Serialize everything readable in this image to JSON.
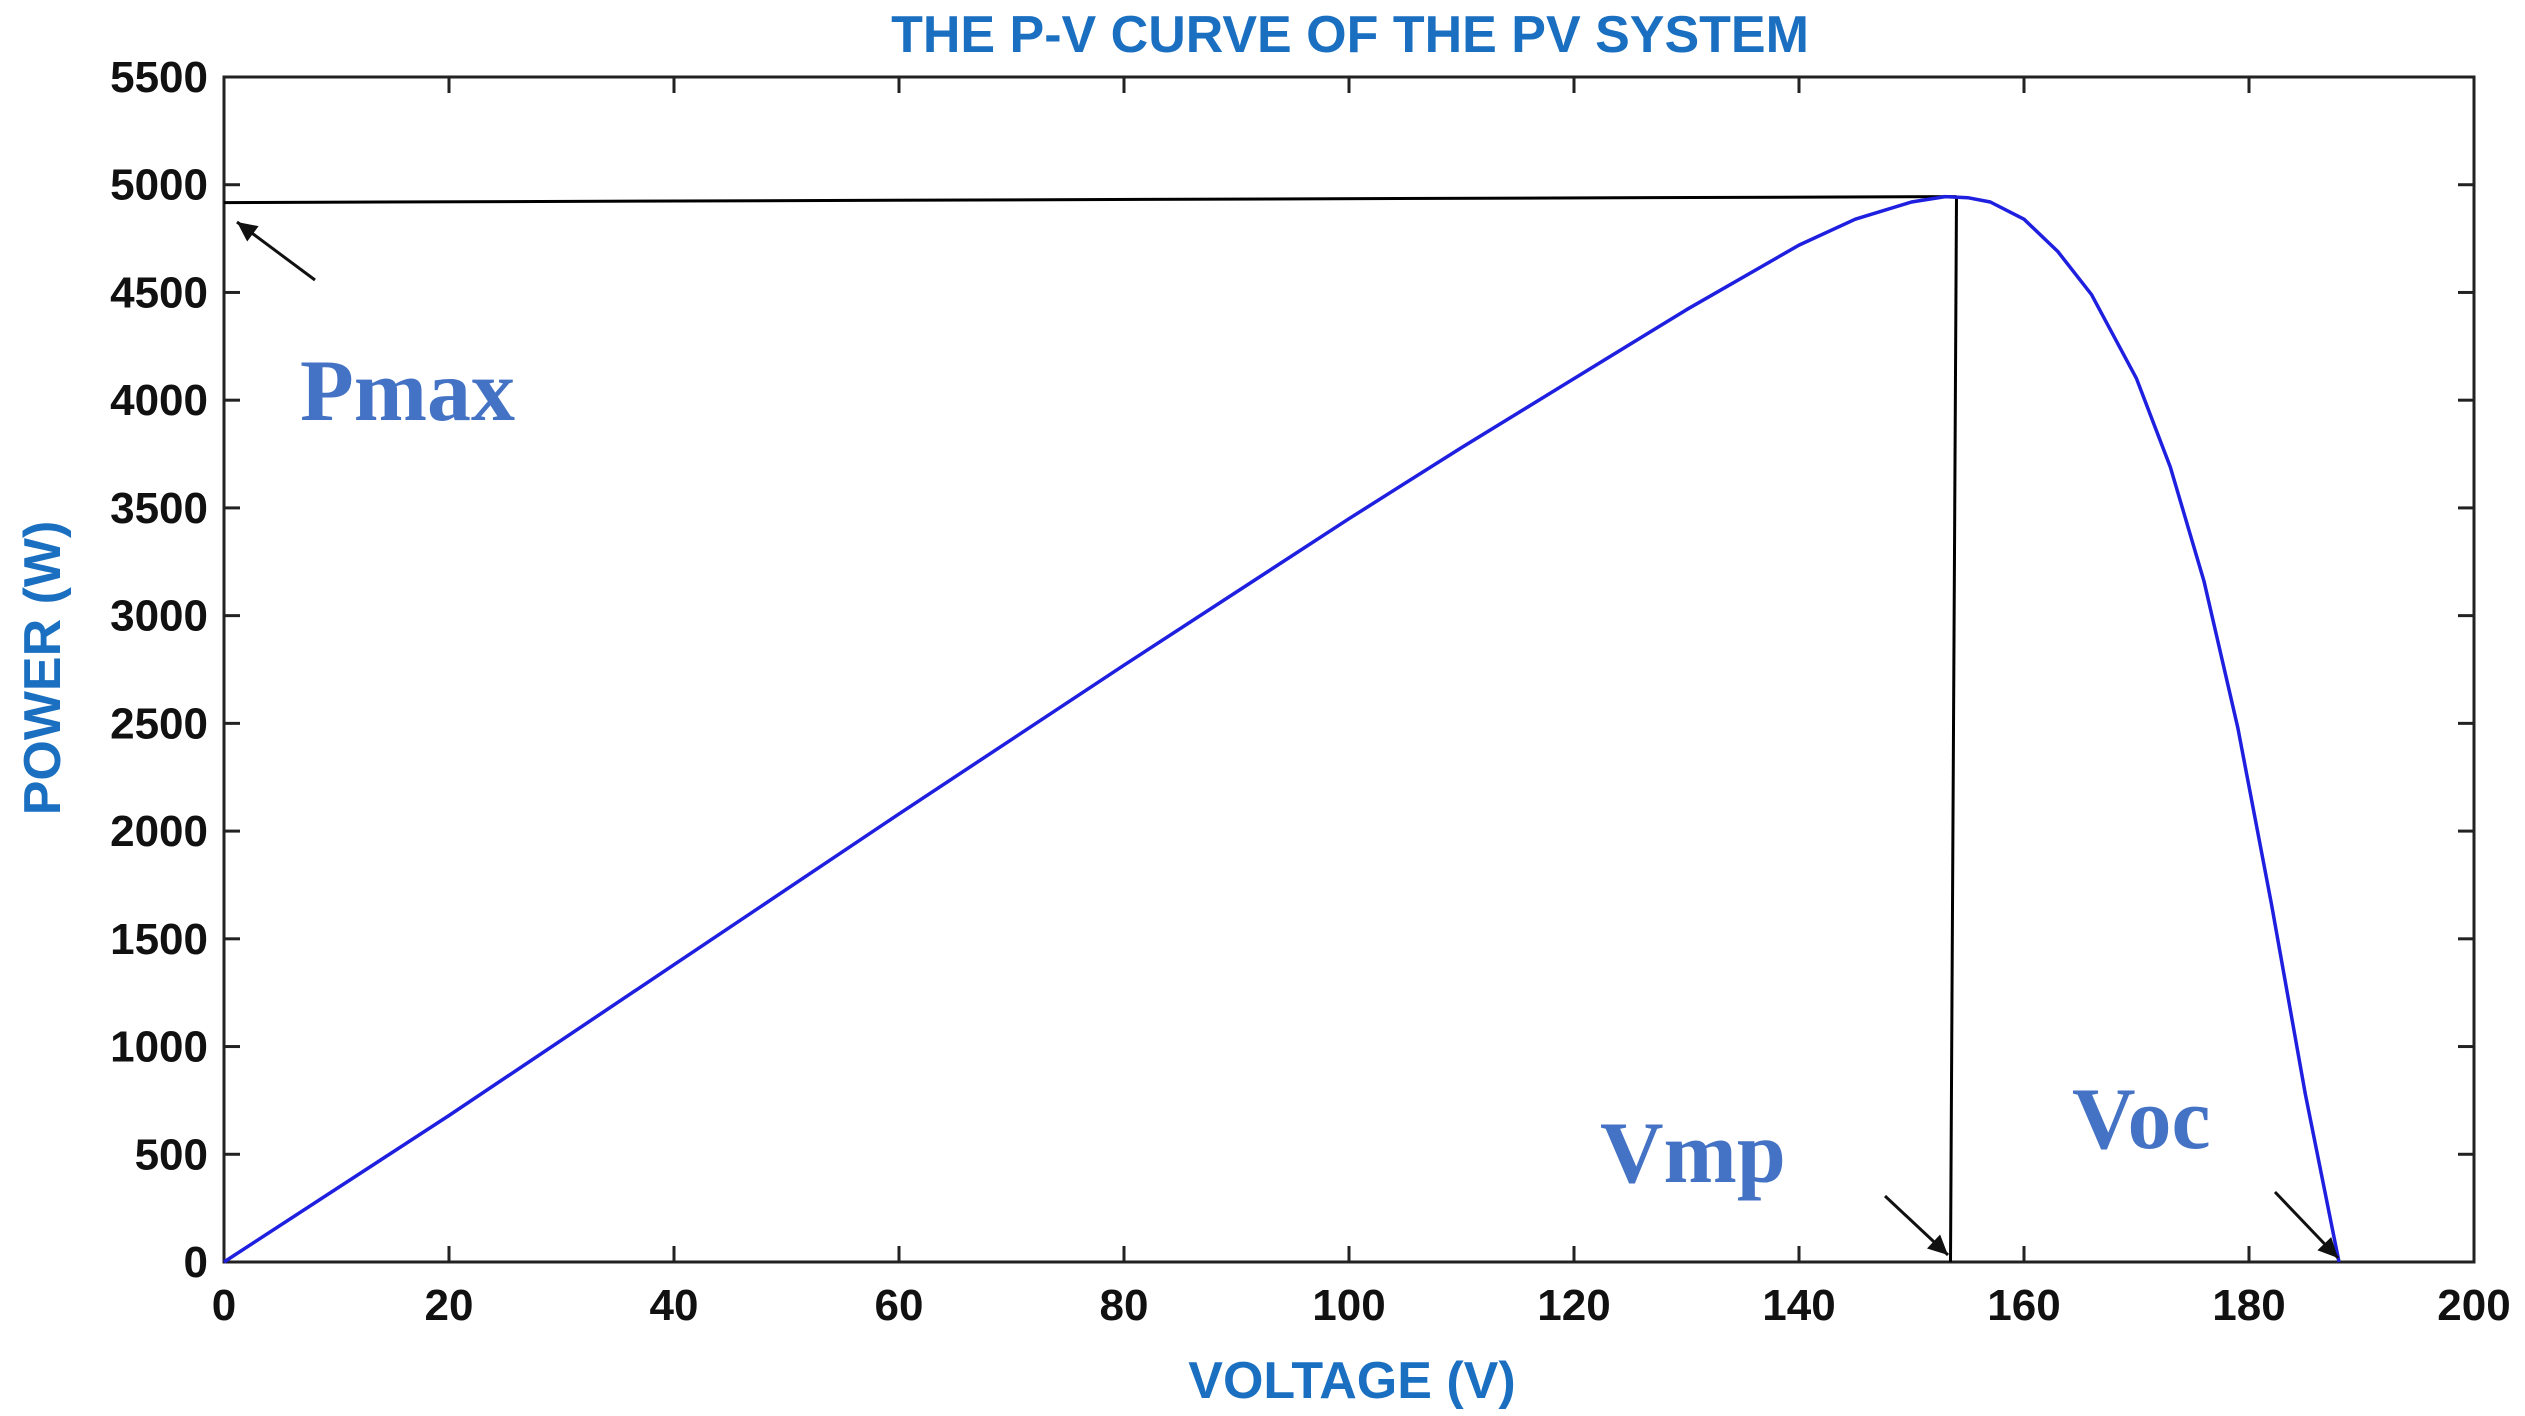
{
  "chart_data": {
    "type": "line",
    "title": "THE P-V CURVE OF THE PV SYSTEM",
    "xlabel": "VOLTAGE (V)",
    "ylabel": "POWER (W)",
    "xlim": [
      0,
      200
    ],
    "ylim": [
      0,
      5500
    ],
    "xticks": [
      0,
      20,
      40,
      60,
      80,
      100,
      120,
      140,
      160,
      180,
      200
    ],
    "yticks": [
      0,
      500,
      1000,
      1500,
      2000,
      2500,
      3000,
      3500,
      4000,
      4500,
      5000,
      5500
    ],
    "grid": false,
    "series": [
      {
        "name": "P-V curve",
        "color": "#1f1fe0",
        "x": [
          0,
          20,
          40,
          60,
          80,
          100,
          110,
          120,
          130,
          140,
          145,
          150,
          153,
          155,
          157,
          160,
          163,
          166,
          170,
          173,
          176,
          179,
          182,
          185,
          188
        ],
        "y": [
          0,
          680,
          1380,
          2080,
          2770,
          3450,
          3780,
          4100,
          4420,
          4720,
          4840,
          4920,
          4945,
          4940,
          4920,
          4840,
          4690,
          4490,
          4100,
          3690,
          3160,
          2480,
          1660,
          780,
          0
        ]
      }
    ],
    "reference_lines": [
      {
        "type": "horizontal",
        "y": 4945,
        "from_x": 0,
        "to_x": 154,
        "color": "#000000"
      },
      {
        "type": "vertical",
        "x": 154,
        "from_y": 0,
        "to_y": 4945,
        "color": "#000000"
      }
    ],
    "annotations": [
      {
        "text": "Pmax",
        "color": "#4472c4",
        "points_to": {
          "x": 0.5,
          "y": 4900
        }
      },
      {
        "text": "Vmp",
        "color": "#4472c4",
        "points_to": {
          "x": 154,
          "y": 0
        }
      },
      {
        "text": "Voc",
        "color": "#4472c4",
        "points_to": {
          "x": 188,
          "y": 0
        }
      }
    ]
  }
}
